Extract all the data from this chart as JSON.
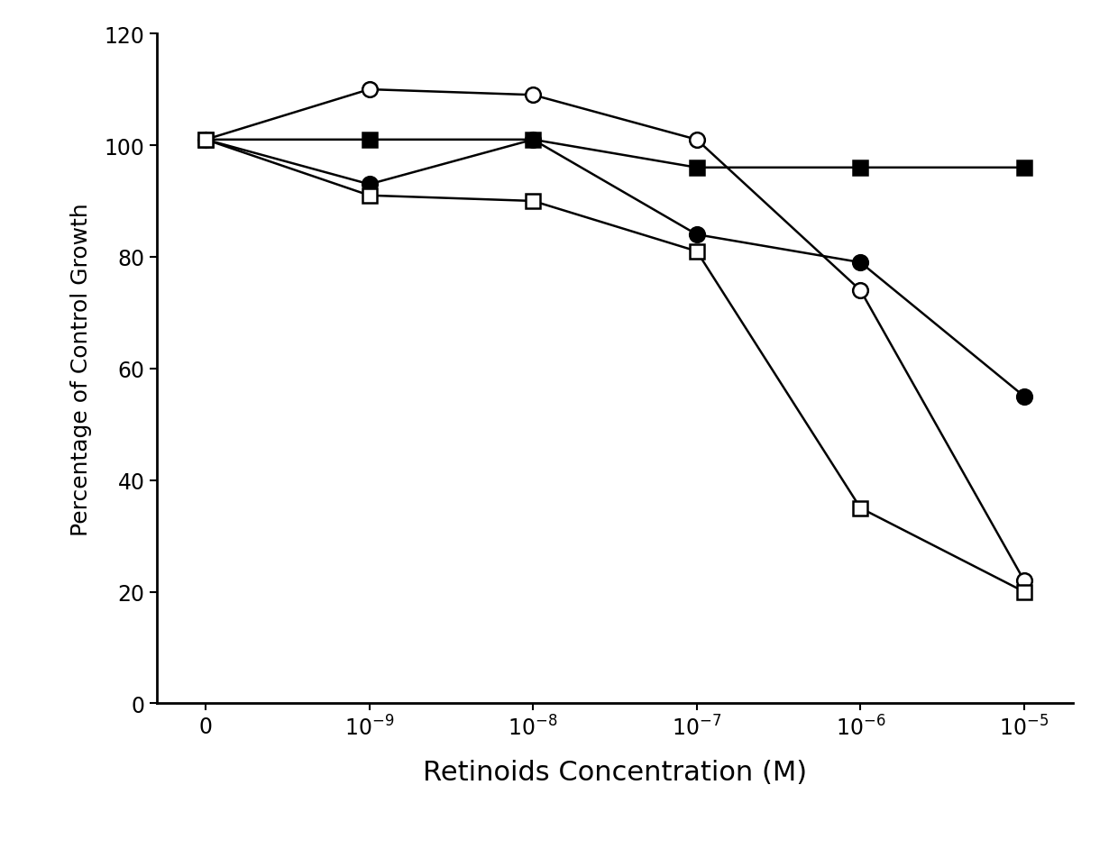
{
  "series": [
    {
      "label": "filled_square",
      "marker": "s",
      "markerfacecolor": "black",
      "y": [
        101,
        101,
        101,
        96,
        96,
        96
      ]
    },
    {
      "label": "open_circle",
      "marker": "o",
      "markerfacecolor": "white",
      "y": [
        101,
        110,
        109,
        101,
        74,
        22
      ]
    },
    {
      "label": "filled_circle",
      "marker": "o",
      "markerfacecolor": "black",
      "y": [
        101,
        93,
        101,
        84,
        79,
        55
      ]
    },
    {
      "label": "open_square",
      "marker": "s",
      "markerfacecolor": "white",
      "y": [
        101,
        91,
        90,
        81,
        35,
        20
      ]
    }
  ],
  "x_tick_labels": [
    "0",
    "10$^{-9}$",
    "10$^{-8}$",
    "10$^{-7}$",
    "10$^{-6}$",
    "10$^{-5}$"
  ],
  "ylabel": "Percentage of Control Growth",
  "xlabel": "Retinoids Concentration (M)",
  "ylim": [
    0,
    120
  ],
  "yticks": [
    0,
    20,
    40,
    60,
    80,
    100,
    120
  ],
  "background_color": "#ffffff",
  "linewidth": 1.8,
  "markersize": 12,
  "tick_fontsize": 17,
  "xlabel_fontsize": 22,
  "ylabel_fontsize": 18
}
